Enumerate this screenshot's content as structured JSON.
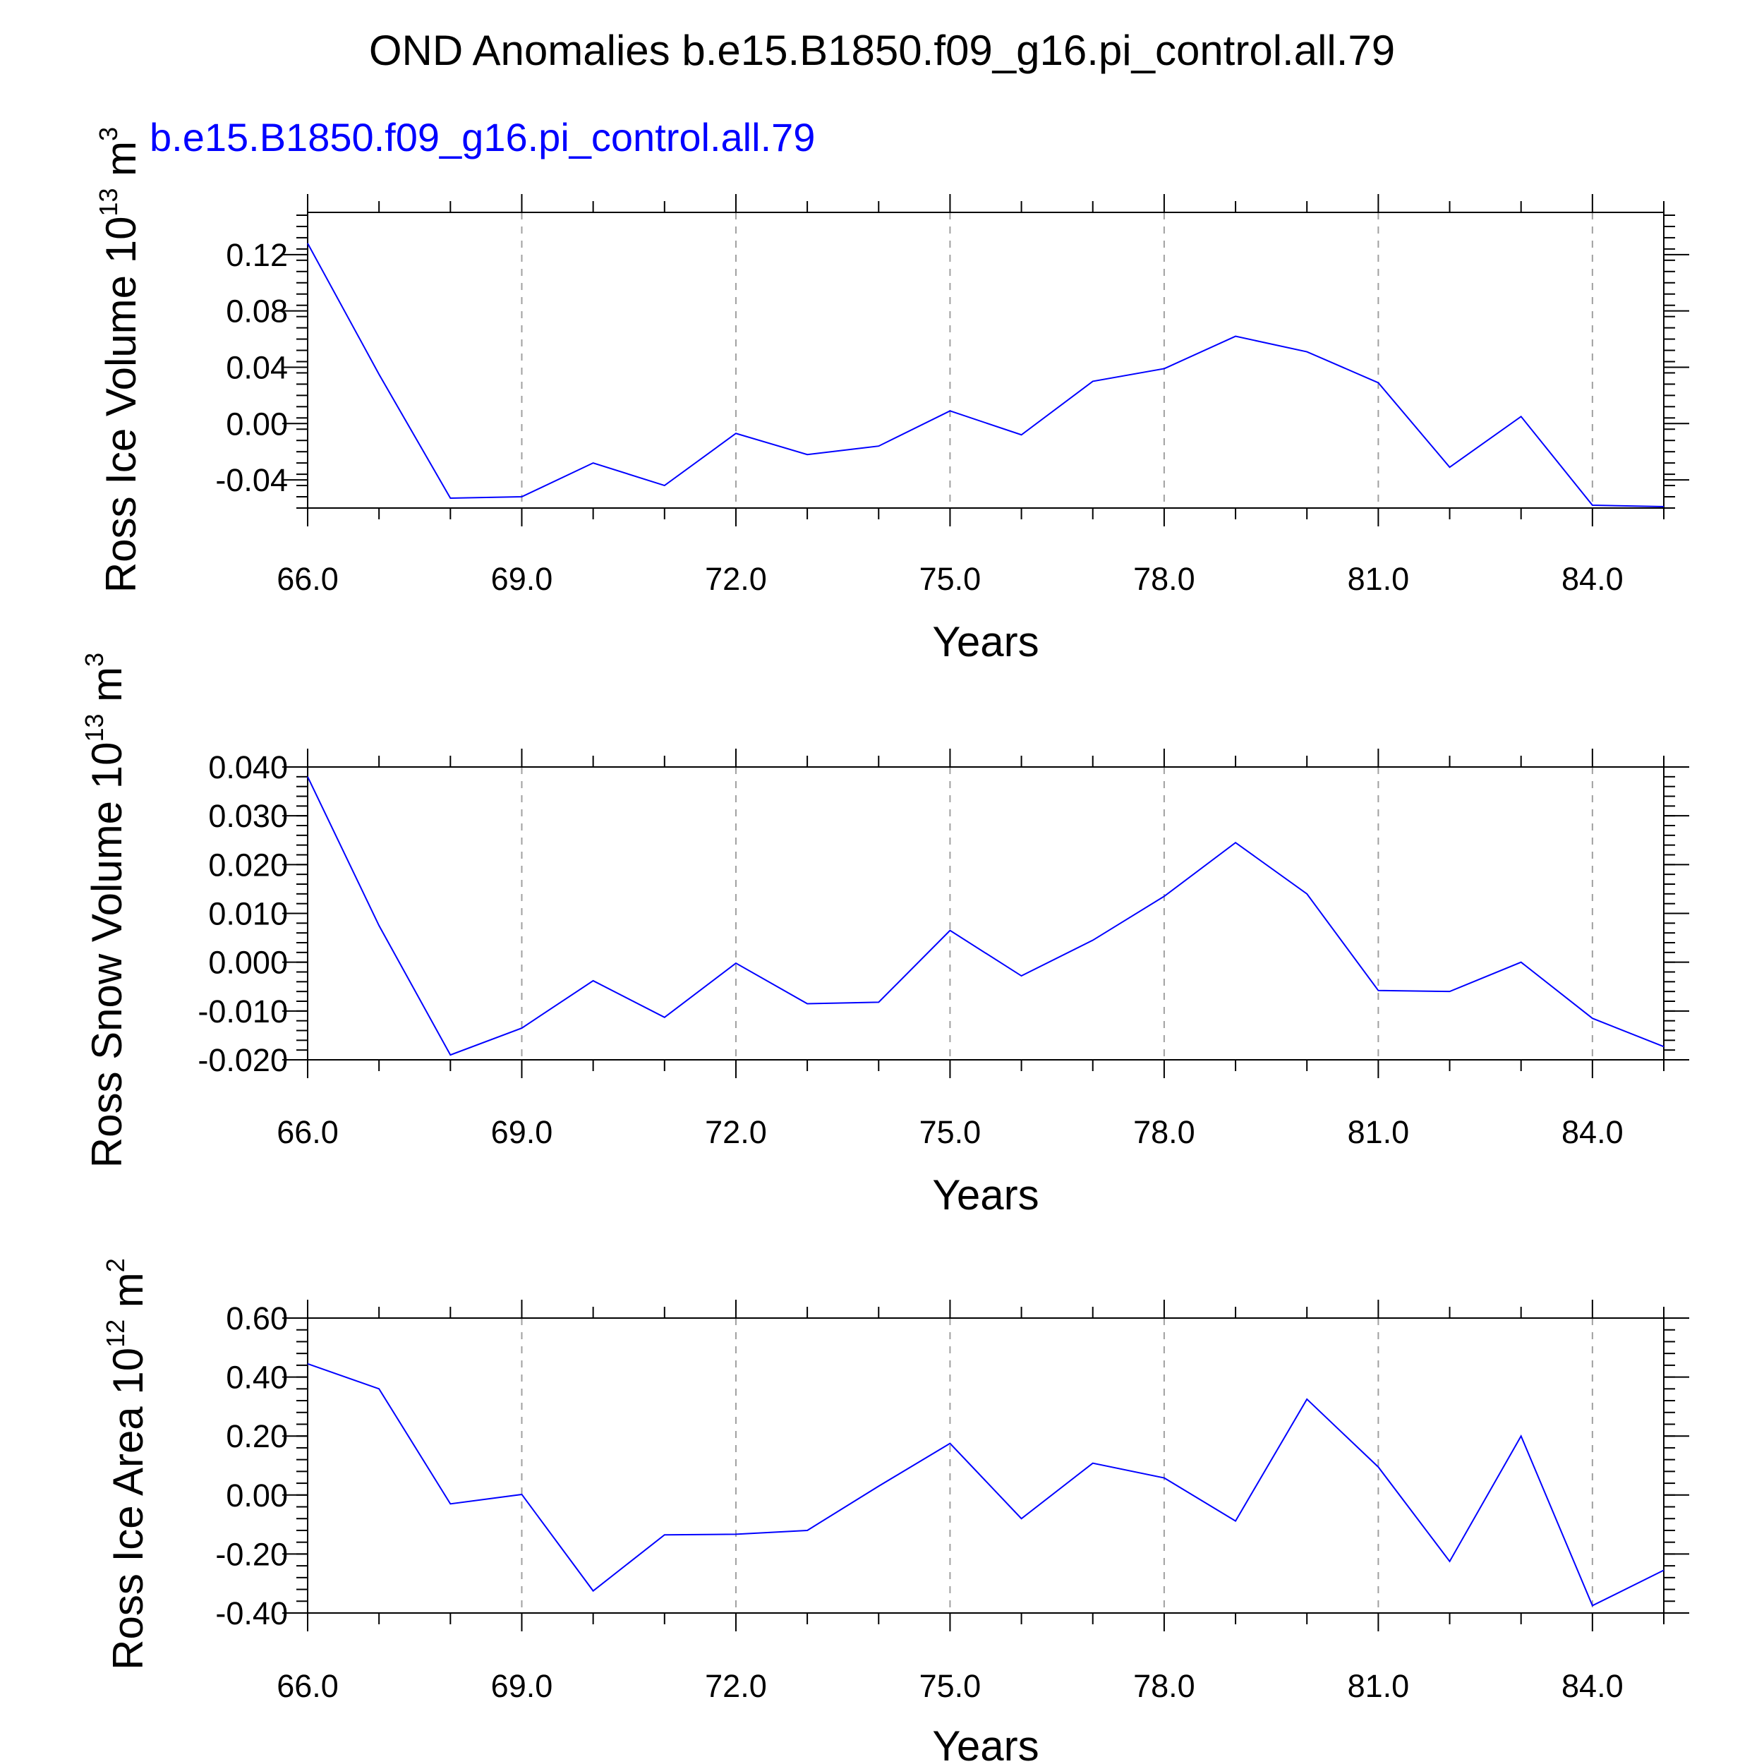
{
  "title": "OND Anomalies b.e15.B1850.f09_g16.pi_control.all.79",
  "legend_label": "b.e15.B1850.f09_g16.pi_control.all.79",
  "line_color": "#0000ff",
  "chart_data": [
    {
      "type": "line",
      "ylabel": "Ross Ice Volume",
      "yunit_base": "10",
      "yunit_exp": "13",
      "yunit_tail": "m",
      "yunit_tail_exp": "3",
      "xlabel": "Years",
      "xlim": [
        66,
        85
      ],
      "ylim": [
        -0.06,
        0.15
      ],
      "xticks": [
        "66.0",
        "69.0",
        "72.0",
        "75.0",
        "78.0",
        "81.0",
        "84.0"
      ],
      "yticks": [
        "-0.04",
        "0.00",
        "0.04",
        "0.08",
        "0.12"
      ],
      "grid": "vertical-dashed",
      "x": [
        66,
        67,
        68,
        69,
        70,
        71,
        72,
        73,
        74,
        75,
        76,
        77,
        78,
        79,
        80,
        81,
        82,
        83,
        84,
        85
      ],
      "y": [
        0.128,
        0.035,
        -0.053,
        -0.052,
        -0.028,
        -0.044,
        -0.007,
        -0.022,
        -0.016,
        0.009,
        -0.008,
        0.03,
        0.039,
        0.062,
        0.051,
        0.029,
        -0.031,
        0.005,
        -0.058,
        -0.059
      ]
    },
    {
      "type": "line",
      "ylabel": "Ross Snow Volume",
      "yunit_base": "10",
      "yunit_exp": "13",
      "yunit_tail": "m",
      "yunit_tail_exp": "3",
      "xlabel": "Years",
      "xlim": [
        66,
        85
      ],
      "ylim": [
        -0.02,
        0.04
      ],
      "xticks": [
        "66.0",
        "69.0",
        "72.0",
        "75.0",
        "78.0",
        "81.0",
        "84.0"
      ],
      "yticks": [
        "-0.020",
        "-0.010",
        "0.000",
        "0.010",
        "0.020",
        "0.030",
        "0.040"
      ],
      "grid": "vertical-dashed",
      "x": [
        66,
        67,
        68,
        69,
        70,
        71,
        72,
        73,
        74,
        75,
        76,
        77,
        78,
        79,
        80,
        81,
        82,
        83,
        84,
        85
      ],
      "y": [
        0.038,
        0.0075,
        -0.019,
        -0.0135,
        -0.0038,
        -0.0113,
        -0.0002,
        -0.0085,
        -0.0082,
        0.0065,
        -0.0028,
        0.0045,
        0.0135,
        0.0245,
        0.014,
        -0.0058,
        -0.006,
        0.0,
        -0.0115,
        -0.0173
      ]
    },
    {
      "type": "line",
      "ylabel": "Ross Ice Area",
      "yunit_base": "10",
      "yunit_exp": "12",
      "yunit_tail": "m",
      "yunit_tail_exp": "2",
      "xlabel": "Years",
      "xlim": [
        66,
        85
      ],
      "ylim": [
        -0.4,
        0.6
      ],
      "xticks": [
        "66.0",
        "69.0",
        "72.0",
        "75.0",
        "78.0",
        "81.0",
        "84.0"
      ],
      "yticks": [
        "-0.40",
        "-0.20",
        "0.00",
        "0.20",
        "0.40",
        "0.60"
      ],
      "grid": "vertical-dashed",
      "x": [
        66,
        67,
        68,
        69,
        70,
        71,
        72,
        73,
        74,
        75,
        76,
        77,
        78,
        79,
        80,
        81,
        82,
        83,
        84,
        85
      ],
      "y": [
        0.445,
        0.36,
        -0.03,
        0.002,
        -0.325,
        -0.135,
        -0.133,
        -0.12,
        0.03,
        0.175,
        -0.08,
        0.108,
        0.058,
        -0.088,
        0.325,
        0.095,
        -0.225,
        0.2,
        -0.375,
        -0.255
      ]
    }
  ]
}
